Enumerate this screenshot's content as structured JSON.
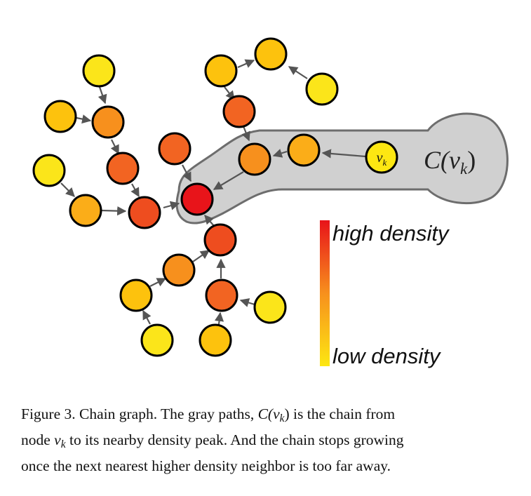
{
  "figure": {
    "chain_label": {
      "main": "C(v",
      "sub": "k",
      "close": ")"
    },
    "node_label": {
      "main": "v",
      "sub": "k"
    },
    "legend": {
      "high_label": "high density",
      "low_label": "low density",
      "high_color": "#e8131a",
      "low_color": "#fde712"
    },
    "colors": {
      "yellow": "#fbe51a",
      "yellow_orange": "#fdc20d",
      "light_orange": "#fbad18",
      "orange": "#f7901d",
      "dark_orange": "#f26422",
      "red_orange": "#ee4d1f",
      "red": "#e8141a",
      "chain_fill": "#d0d0d0",
      "chain_stroke": "#6d6d6d",
      "arrow": "#555555"
    }
  },
  "caption": {
    "line1_a": "Figure 3. Chain graph.  The gray paths, ",
    "line1_math": "C(v",
    "line1_sub": "k",
    "line1_close": ")",
    "line1_b": " is the chain from",
    "line2_a": "node ",
    "line2_math": "v",
    "line2_sub": "k",
    "line2_b": " to its nearby density peak.  And the chain stops growing",
    "line3": "once the next nearest higher density neighbor is too far away."
  }
}
